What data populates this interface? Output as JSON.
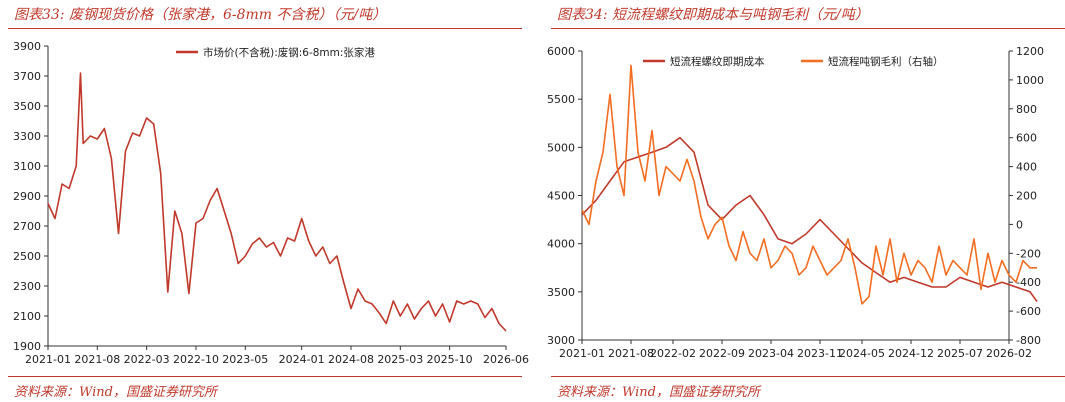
{
  "figures": [
    {
      "title": "图表33: 废钢现货价格（张家港，6-8mm 不含税）（元/吨）",
      "source": "资料来源：Wind，国盛证券研究所"
    },
    {
      "title": "图表34: 短流程螺纹即期成本与吨钢毛利（元/吨）",
      "source": "资料来源：Wind，国盛证券研究所"
    }
  ],
  "colors": {
    "accent": "#c0392b",
    "series_dark": "#c0392b",
    "series_orange": "#f26d21"
  },
  "chart_data": [
    {
      "type": "line",
      "grid": false,
      "legend": "top-center",
      "xlabel": "",
      "ylabel": "",
      "x_ticks": [
        "2021-01",
        "2021-08",
        "2022-03",
        "2022-10",
        "2023-05",
        "2024-01",
        "2024-08",
        "2025-03",
        "2025-10",
        "2026-06"
      ],
      "ylim": [
        1900,
        3900
      ],
      "y_ticks": [
        1900,
        2100,
        2300,
        2500,
        2700,
        2900,
        3100,
        3300,
        3500,
        3700,
        3900
      ],
      "series": [
        {
          "name": "市场价(不含税):废钢:6-8mm:张家港",
          "color": "#c0392b",
          "x": [
            "2021-01",
            "2021-02",
            "2021-03",
            "2021-04",
            "2021-05",
            "2021-05-20",
            "2021-06",
            "2021-07",
            "2021-08",
            "2021-09",
            "2021-10",
            "2021-11",
            "2021-12",
            "2022-01",
            "2022-02",
            "2022-03",
            "2022-04",
            "2022-05",
            "2022-06",
            "2022-07",
            "2022-08",
            "2022-09",
            "2022-10",
            "2022-11",
            "2022-12",
            "2023-01",
            "2023-02",
            "2023-03",
            "2023-04",
            "2023-05",
            "2023-06",
            "2023-07",
            "2023-08",
            "2023-09",
            "2023-10",
            "2023-11",
            "2023-12",
            "2024-01",
            "2024-02",
            "2024-03",
            "2024-04",
            "2024-05",
            "2024-06",
            "2024-07",
            "2024-08",
            "2024-09",
            "2024-10",
            "2024-11",
            "2024-12",
            "2025-01",
            "2025-02",
            "2025-03",
            "2025-04",
            "2025-05",
            "2025-06",
            "2025-07",
            "2025-08",
            "2025-09",
            "2025-10",
            "2025-11",
            "2025-12",
            "2026-01",
            "2026-02",
            "2026-03",
            "2026-04",
            "2026-05",
            "2026-06"
          ],
          "y": [
            2850,
            2750,
            2980,
            2950,
            3100,
            3720,
            3250,
            3300,
            3280,
            3350,
            3150,
            2650,
            3200,
            3320,
            3300,
            3420,
            3380,
            3050,
            2260,
            2800,
            2650,
            2250,
            2720,
            2750,
            2870,
            2950,
            2800,
            2650,
            2450,
            2500,
            2580,
            2620,
            2560,
            2590,
            2500,
            2620,
            2600,
            2750,
            2600,
            2500,
            2560,
            2450,
            2500,
            2320,
            2150,
            2280,
            2200,
            2180,
            2120,
            2050,
            2200,
            2100,
            2180,
            2080,
            2150,
            2200,
            2100,
            2180,
            2060,
            2200,
            2180,
            2200,
            2180,
            2090,
            2150,
            2050,
            2000
          ]
        }
      ]
    },
    {
      "type": "line",
      "grid": false,
      "legend": "top-left",
      "xlabel": "",
      "ylabel": "",
      "x_ticks": [
        "2021-01",
        "2021-08",
        "2022-02",
        "2022-09",
        "2023-04",
        "2023-11",
        "2024-05",
        "2024-12",
        "2025-07",
        "2026-02"
      ],
      "ylim": [
        3000,
        6000
      ],
      "y_ticks": [
        3000,
        3500,
        4000,
        4500,
        5000,
        5500,
        6000
      ],
      "y2lim": [
        -800,
        1200
      ],
      "y2_ticks": [
        -800,
        -600,
        -400,
        -200,
        0,
        200,
        400,
        600,
        800,
        1000,
        1200
      ],
      "series": [
        {
          "name": "短流程螺纹即期成本",
          "color": "#c0392b",
          "axis": "left",
          "x": [
            "2021-01",
            "2021-03",
            "2021-05",
            "2021-07",
            "2021-09",
            "2021-11",
            "2022-01",
            "2022-03",
            "2022-05",
            "2022-07",
            "2022-09",
            "2022-11",
            "2023-01",
            "2023-03",
            "2023-05",
            "2023-07",
            "2023-09",
            "2023-11",
            "2024-01",
            "2024-03",
            "2024-05",
            "2024-07",
            "2024-09",
            "2024-11",
            "2025-01",
            "2025-03",
            "2025-05",
            "2025-07",
            "2025-09",
            "2025-11",
            "2026-01",
            "2026-03",
            "2026-05",
            "2026-06"
          ],
          "y": [
            4300,
            4450,
            4650,
            4850,
            4900,
            4950,
            5000,
            5100,
            4950,
            4400,
            4250,
            4400,
            4500,
            4300,
            4050,
            4000,
            4100,
            4250,
            4100,
            3950,
            3800,
            3700,
            3600,
            3650,
            3600,
            3550,
            3550,
            3650,
            3600,
            3550,
            3600,
            3550,
            3500,
            3400
          ]
        },
        {
          "name": "短流程吨钢毛利（右轴）",
          "color": "#f26d21",
          "axis": "right",
          "x": [
            "2021-01",
            "2021-02",
            "2021-03",
            "2021-04",
            "2021-05",
            "2021-06",
            "2021-07",
            "2021-08",
            "2021-09",
            "2021-10",
            "2021-11",
            "2021-12",
            "2022-01",
            "2022-02",
            "2022-03",
            "2022-04",
            "2022-05",
            "2022-06",
            "2022-07",
            "2022-08",
            "2022-09",
            "2022-10",
            "2022-11",
            "2022-12",
            "2023-01",
            "2023-02",
            "2023-03",
            "2023-04",
            "2023-05",
            "2023-06",
            "2023-07",
            "2023-08",
            "2023-09",
            "2023-10",
            "2023-11",
            "2023-12",
            "2024-01",
            "2024-02",
            "2024-03",
            "2024-04",
            "2024-05",
            "2024-06",
            "2024-07",
            "2024-08",
            "2024-09",
            "2024-10",
            "2024-11",
            "2024-12",
            "2025-01",
            "2025-02",
            "2025-03",
            "2025-04",
            "2025-05",
            "2025-06",
            "2025-07",
            "2025-08",
            "2025-09",
            "2025-10",
            "2025-11",
            "2025-12",
            "2026-01",
            "2026-02",
            "2026-03",
            "2026-04",
            "2026-05",
            "2026-06"
          ],
          "y": [
            100,
            0,
            300,
            500,
            900,
            400,
            200,
            1100,
            500,
            300,
            650,
            200,
            400,
            350,
            300,
            450,
            300,
            50,
            -100,
            0,
            50,
            -150,
            -250,
            -50,
            -200,
            -250,
            -100,
            -300,
            -250,
            -150,
            -200,
            -350,
            -300,
            -150,
            -250,
            -350,
            -300,
            -250,
            -100,
            -300,
            -550,
            -500,
            -150,
            -350,
            -100,
            -400,
            -200,
            -350,
            -250,
            -300,
            -400,
            -150,
            -350,
            -250,
            -300,
            -350,
            -100,
            -450,
            -200,
            -400,
            -250,
            -350,
            -400,
            -250,
            -300,
            -300
          ]
        }
      ]
    }
  ]
}
